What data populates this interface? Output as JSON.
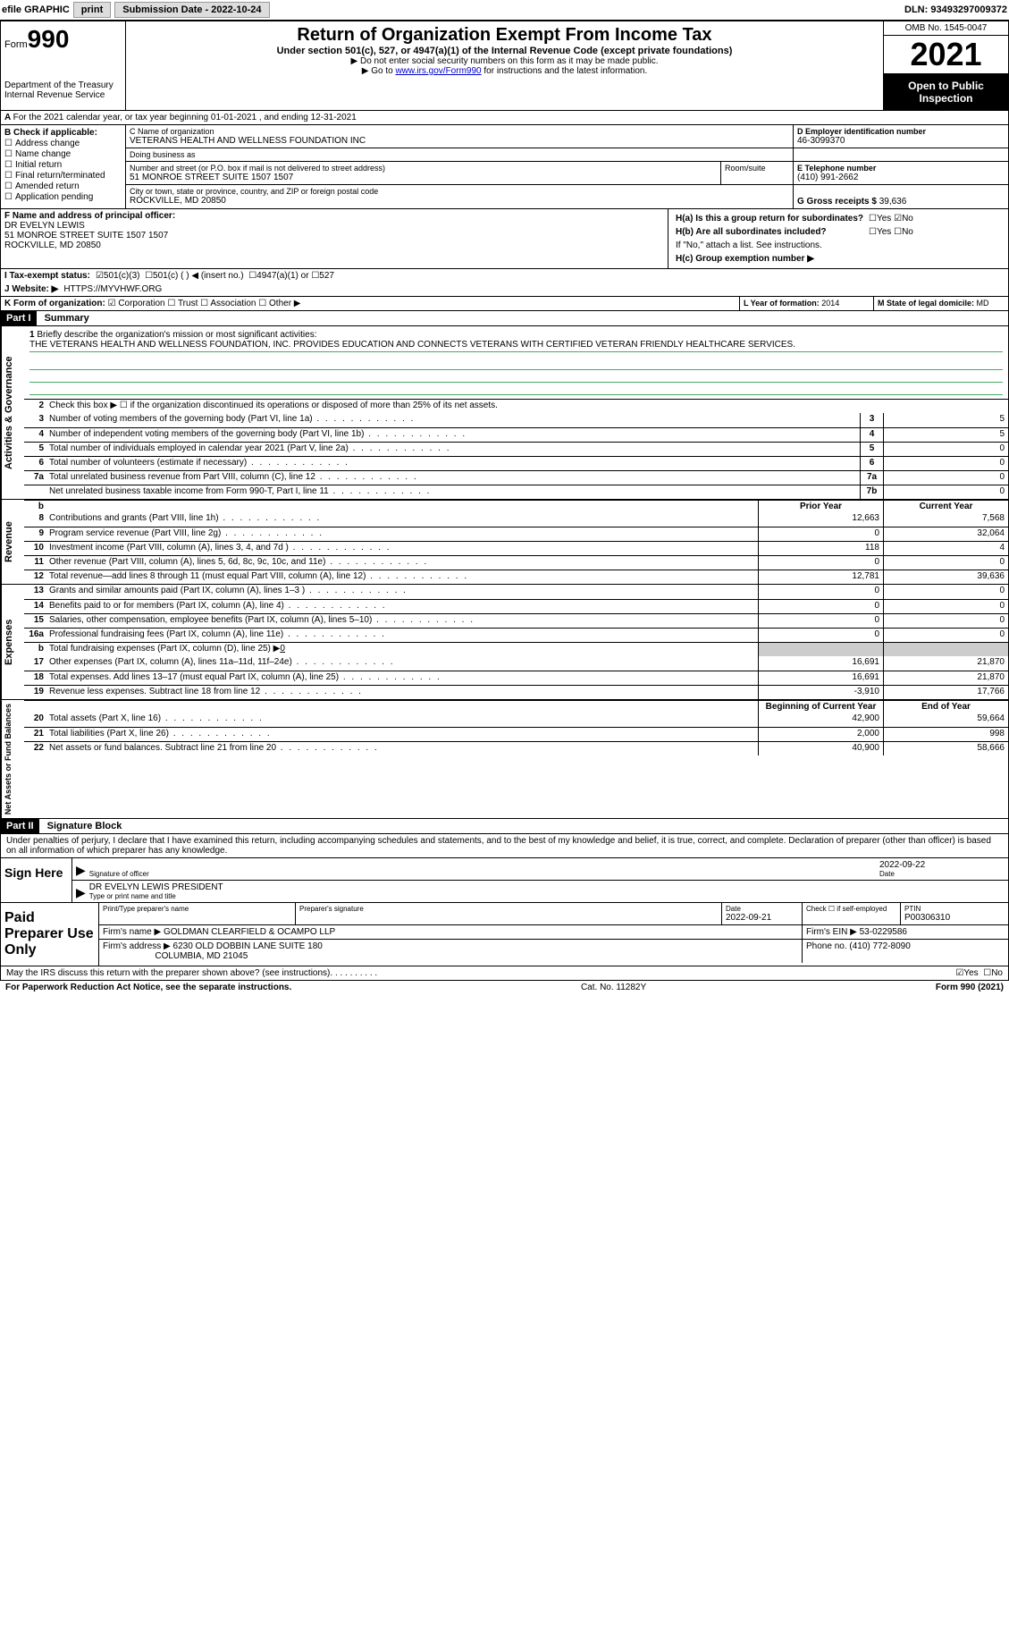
{
  "topbar": {
    "efile": "efile GRAPHIC",
    "print": "print",
    "subdate_label": "Submission Date - 2022-10-24",
    "dln_label": "DLN: 93493297009372"
  },
  "header": {
    "form_prefix": "Form",
    "form_num": "990",
    "dept": "Department of the Treasury\nInternal Revenue Service",
    "title": "Return of Organization Exempt From Income Tax",
    "subtitle": "Under section 501(c), 527, or 4947(a)(1) of the Internal Revenue Code (except private foundations)",
    "note1": "▶ Do not enter social security numbers on this form as it may be made public.",
    "note2_pre": "▶ Go to ",
    "note2_link": "www.irs.gov/Form990",
    "note2_post": " for instructions and the latest information.",
    "omb": "OMB No. 1545-0047",
    "year": "2021",
    "open": "Open to Public Inspection"
  },
  "row_a": "For the 2021 calendar year, or tax year beginning 01-01-2021   , and ending 12-31-2021",
  "box_b": {
    "title": "B Check if applicable:",
    "items": [
      "Address change",
      "Name change",
      "Initial return",
      "Final return/terminated",
      "Amended return",
      "Application pending"
    ]
  },
  "box_c": {
    "name_label": "C Name of organization",
    "name": "VETERANS HEALTH AND WELLNESS FOUNDATION INC",
    "dba_label": "Doing business as",
    "dba": "",
    "addr_label": "Number and street (or P.O. box if mail is not delivered to street address)",
    "room_label": "Room/suite",
    "addr": "51 MONROE STREET SUITE 1507 1507",
    "city_label": "City or town, state or province, country, and ZIP or foreign postal code",
    "city": "ROCKVILLE, MD  20850"
  },
  "box_d": {
    "label": "D Employer identification number",
    "value": "46-3099370"
  },
  "box_e": {
    "label": "E Telephone number",
    "value": "(410) 991-2662"
  },
  "box_g": {
    "label": "G Gross receipts $",
    "value": "39,636"
  },
  "box_f": {
    "label": "F  Name and address of principal officer:",
    "name": "DR EVELYN LEWIS",
    "addr1": "51 MONROE STREET SUITE 1507 1507",
    "addr2": "ROCKVILLE, MD  20850"
  },
  "box_h": {
    "ha_label": "H(a)  Is this a group return for subordinates?",
    "ha_yes": "Yes",
    "ha_no": "No",
    "hb_label": "H(b)  Are all subordinates included?",
    "hb_yes": "Yes",
    "hb_no": "No",
    "hb_note": "If \"No,\" attach a list. See instructions.",
    "hc_label": "H(c)  Group exemption number ▶"
  },
  "row_i": {
    "label": "I  Tax-exempt status:",
    "o1": "501(c)(3)",
    "o2": "501(c) (  ) ◀ (insert no.)",
    "o3": "4947(a)(1) or",
    "o4": "527"
  },
  "row_j": {
    "label": "J  Website: ▶",
    "value": "HTTPS://MYVHWF.ORG"
  },
  "row_k": {
    "label": "K Form of organization:",
    "o1": "Corporation",
    "o2": "Trust",
    "o3": "Association",
    "o4": "Other ▶"
  },
  "row_l": {
    "label": "L Year of formation:",
    "value": "2014"
  },
  "row_m": {
    "label": "M State of legal domicile:",
    "value": "MD"
  },
  "part1": {
    "hdr": "Part I",
    "title": "Summary"
  },
  "mission": {
    "num": "1",
    "label": "Briefly describe the organization's mission or most significant activities:",
    "text": "THE VETERANS HEALTH AND WELLNESS FOUNDATION, INC. PROVIDES EDUCATION AND CONNECTS VETERANS WITH CERTIFIED VETERAN FRIENDLY HEALTHCARE SERVICES."
  },
  "line2": {
    "num": "2",
    "text": "Check this box ▶ ☐  if the organization discontinued its operations or disposed of more than 25% of its net assets."
  },
  "gov_lines": [
    {
      "num": "3",
      "text": "Number of voting members of the governing body (Part VI, line 1a)",
      "box": "3",
      "val": "5"
    },
    {
      "num": "4",
      "text": "Number of independent voting members of the governing body (Part VI, line 1b)",
      "box": "4",
      "val": "5"
    },
    {
      "num": "5",
      "text": "Total number of individuals employed in calendar year 2021 (Part V, line 2a)",
      "box": "5",
      "val": "0"
    },
    {
      "num": "6",
      "text": "Total number of volunteers (estimate if necessary)",
      "box": "6",
      "val": "0"
    },
    {
      "num": "7a",
      "text": "Total unrelated business revenue from Part VIII, column (C), line 12",
      "box": "7a",
      "val": "0"
    },
    {
      "num": "",
      "text": "Net unrelated business taxable income from Form 990-T, Part I, line 11",
      "box": "7b",
      "val": "0"
    }
  ],
  "col_headers": {
    "prior": "Prior Year",
    "current": "Current Year",
    "begin": "Beginning of Current Year",
    "end": "End of Year",
    "b_lbl": "b"
  },
  "revenue_lines": [
    {
      "num": "8",
      "text": "Contributions and grants (Part VIII, line 1h)",
      "v1": "12,663",
      "v2": "7,568"
    },
    {
      "num": "9",
      "text": "Program service revenue (Part VIII, line 2g)",
      "v1": "0",
      "v2": "32,064"
    },
    {
      "num": "10",
      "text": "Investment income (Part VIII, column (A), lines 3, 4, and 7d )",
      "v1": "118",
      "v2": "4"
    },
    {
      "num": "11",
      "text": "Other revenue (Part VIII, column (A), lines 5, 6d, 8c, 9c, 10c, and 11e)",
      "v1": "0",
      "v2": "0"
    },
    {
      "num": "12",
      "text": "Total revenue—add lines 8 through 11 (must equal Part VIII, column (A), line 12)",
      "v1": "12,781",
      "v2": "39,636"
    }
  ],
  "expense_lines": [
    {
      "num": "13",
      "text": "Grants and similar amounts paid (Part IX, column (A), lines 1–3 )",
      "v1": "0",
      "v2": "0"
    },
    {
      "num": "14",
      "text": "Benefits paid to or for members (Part IX, column (A), line 4)",
      "v1": "0",
      "v2": "0"
    },
    {
      "num": "15",
      "text": "Salaries, other compensation, employee benefits (Part IX, column (A), lines 5–10)",
      "v1": "0",
      "v2": "0"
    },
    {
      "num": "16a",
      "text": "Professional fundraising fees (Part IX, column (A), line 11e)",
      "v1": "0",
      "v2": "0"
    }
  ],
  "line16b": {
    "num": "b",
    "text": "Total fundraising expenses (Part IX, column (D), line 25) ▶",
    "val": "0"
  },
  "expense_lines2": [
    {
      "num": "17",
      "text": "Other expenses (Part IX, column (A), lines 11a–11d, 11f–24e)",
      "v1": "16,691",
      "v2": "21,870"
    },
    {
      "num": "18",
      "text": "Total expenses. Add lines 13–17 (must equal Part IX, column (A), line 25)",
      "v1": "16,691",
      "v2": "21,870"
    },
    {
      "num": "19",
      "text": "Revenue less expenses. Subtract line 18 from line 12",
      "v1": "-3,910",
      "v2": "17,766"
    }
  ],
  "netassets_lines": [
    {
      "num": "20",
      "text": "Total assets (Part X, line 16)",
      "v1": "42,900",
      "v2": "59,664"
    },
    {
      "num": "21",
      "text": "Total liabilities (Part X, line 26)",
      "v1": "2,000",
      "v2": "998"
    },
    {
      "num": "22",
      "text": "Net assets or fund balances. Subtract line 21 from line 20",
      "v1": "40,900",
      "v2": "58,666"
    }
  ],
  "vlabels": {
    "gov": "Activities & Governance",
    "rev": "Revenue",
    "exp": "Expenses",
    "net": "Net Assets or Fund Balances"
  },
  "part2": {
    "hdr": "Part II",
    "title": "Signature Block"
  },
  "sig": {
    "decl": "Under penalties of perjury, I declare that I have examined this return, including accompanying schedules and statements, and to the best of my knowledge and belief, it is true, correct, and complete. Declaration of preparer (other than officer) is based on all information of which preparer has any knowledge.",
    "sign_here": "Sign Here",
    "sig_officer": "Signature of officer",
    "date_lbl": "Date",
    "date_val": "2022-09-22",
    "name_title": "DR EVELYN LEWIS  PRESIDENT",
    "name_sub": "Type or print name and title"
  },
  "paid": {
    "title": "Paid Preparer Use Only",
    "prep_name_lbl": "Print/Type preparer's name",
    "prep_sig_lbl": "Preparer's signature",
    "date_lbl": "Date",
    "date_val": "2022-09-21",
    "check_lbl": "Check ☐ if self-employed",
    "ptin_lbl": "PTIN",
    "ptin_val": "P00306310",
    "firm_name_lbl": "Firm's name    ▶",
    "firm_name": "GOLDMAN CLEARFIELD & OCAMPO LLP",
    "firm_ein_lbl": "Firm's EIN ▶",
    "firm_ein": "53-0229586",
    "firm_addr_lbl": "Firm's address ▶",
    "firm_addr1": "6230 OLD DOBBIN LANE SUITE 180",
    "firm_addr2": "COLUMBIA, MD  21045",
    "phone_lbl": "Phone no.",
    "phone": "(410) 772-8090"
  },
  "discuss": {
    "text": "May the IRS discuss this return with the preparer shown above? (see instructions)",
    "yes": "Yes",
    "no": "No"
  },
  "footer": {
    "left": "For Paperwork Reduction Act Notice, see the separate instructions.",
    "mid": "Cat. No. 11282Y",
    "right": "Form 990 (2021)"
  }
}
